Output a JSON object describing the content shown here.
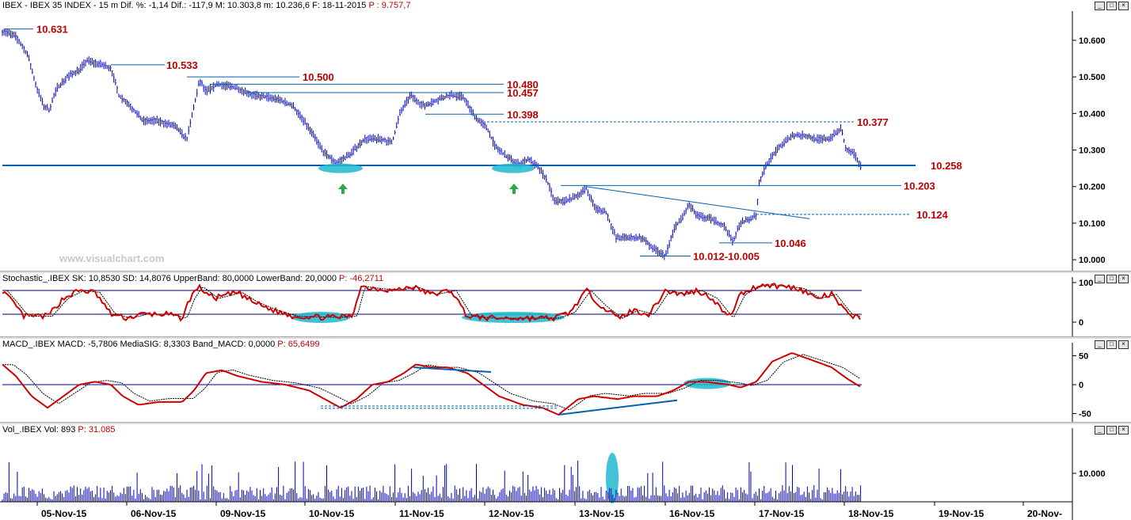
{
  "colors": {
    "price": "#0000b4",
    "level": "#0060b0",
    "label": "#c00000",
    "oscillator": "#d00000",
    "signal": "#000000",
    "highlight": "#20b8d0",
    "arrow": "#2aa84a"
  },
  "watermark": "www.visualchart.com",
  "main": {
    "header": "IBEX - IBEX 35 INDEX - 15 m Dif. %: -1,14 Dif.: -117,9 M: 10.303,8 m: 10.236,6 F: 18-11-2015",
    "header_p": "P : 9.757,7",
    "y_ticks": [
      "10.600",
      "10.500",
      "10.400",
      "10.300",
      "10.200",
      "10.100",
      "10.000"
    ],
    "levels": [
      "10.631",
      "10.533",
      "10.500",
      "10.480",
      "10.457",
      "10.398",
      "10.377",
      "10.258",
      "10.203",
      "10.124",
      "10.046",
      "10.012-10.005"
    ]
  },
  "stoch": {
    "header": "Stochastic_.IBEX SK: 10,8530 SD: 14,8076 UpperBand: 80,0000 LowerBand: 20,0000",
    "header_p": "P: -46,2711",
    "y_ticks": [
      "100",
      "0"
    ]
  },
  "macd": {
    "header": "MACD_.IBEX MACD: -5,7806 MediaSIG: 8,3303 Band_MACD: 0,0000",
    "header_p": "P: 65,6499",
    "y_ticks": [
      "50",
      "0",
      "-50"
    ]
  },
  "vol": {
    "header": "Vol_.IBEX Vol: 893",
    "header_p": "P: 31.085",
    "y_ticks": [
      "10.000"
    ]
  },
  "x_axis": [
    "05-Nov-15",
    "06-Nov-15",
    "09-Nov-15",
    "10-Nov-15",
    "11-Nov-15",
    "12-Nov-15",
    "13-Nov-15",
    "16-Nov-15",
    "17-Nov-15",
    "18-Nov-15",
    "19-Nov-15",
    "20-Nov-"
  ],
  "chart_data": {
    "type": "line",
    "title": "IBEX - IBEX 35 INDEX - 15 m",
    "x": [
      "05-Nov-15",
      "06-Nov-15",
      "09-Nov-15",
      "10-Nov-15",
      "11-Nov-15",
      "12-Nov-15",
      "13-Nov-15",
      "16-Nov-15",
      "17-Nov-15",
      "18-Nov-15"
    ],
    "price_ylim": [
      9970,
      10680
    ],
    "series": [
      {
        "name": "IBEX",
        "values": [
          10480,
          10370,
          10470,
          10260,
          10440,
          10280,
          10080,
          10080,
          10340,
          10250
        ]
      },
      {
        "name": "SK",
        "values": [
          40,
          60,
          80,
          20,
          85,
          20,
          70,
          60,
          95,
          10
        ]
      },
      {
        "name": "MACD",
        "values": [
          -10,
          -20,
          20,
          -30,
          30,
          -40,
          -20,
          5,
          55,
          -6
        ]
      },
      {
        "name": "Vol",
        "values": [
          3500,
          4000,
          4200,
          3800,
          4000,
          3700,
          4500,
          3400,
          3900,
          2000
        ]
      }
    ],
    "levels": [
      10631,
      10533,
      10500,
      10480,
      10457,
      10398,
      10377,
      10258,
      10203,
      10124,
      10046,
      10012,
      10005
    ]
  }
}
